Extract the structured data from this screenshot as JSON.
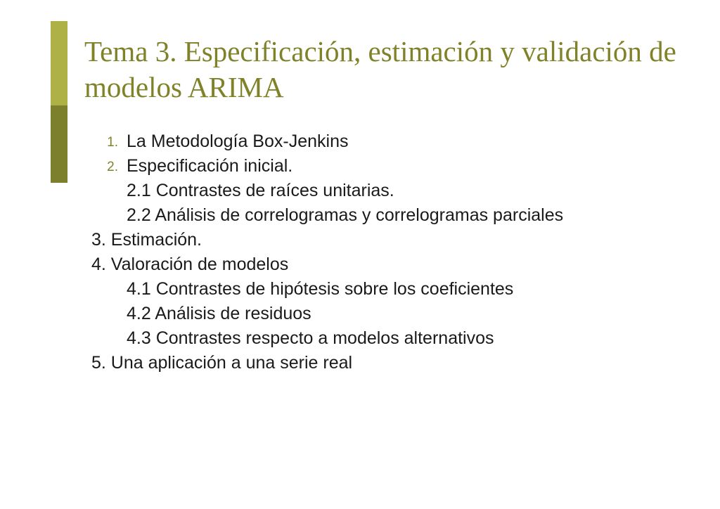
{
  "slide": {
    "title": "Tema 3. Especificación, estimación y validación de modelos ARIMA",
    "accent_color_light": "#aeb146",
    "accent_color_dark": "#7c7f2b",
    "title_color": "#808229",
    "title_fontsize": 41,
    "body_fontsize": 25,
    "number_fontsize": 19,
    "number_color": "#808229",
    "text_color": "#1a1a1a",
    "background_color": "#ffffff",
    "items": {
      "n1": "1.",
      "t1": "La Metodología Box-Jenkins",
      "n2": "2.",
      "t2": "Especificación inicial.",
      "t2_1": "2.1 Contrastes de raíces unitarias.",
      "t2_2": "2.2 Análisis de correlogramas y correlogramas parciales",
      "t3": "3. Estimación.",
      "t4": "4. Valoración de modelos",
      "t4_1": "4.1 Contrastes de hipótesis sobre los coeficientes",
      "t4_2": "4.2 Análisis de residuos",
      "t4_3": "4.3 Contrastes respecto a modelos alternativos",
      "t5": "5. Una aplicación a una serie real"
    }
  }
}
